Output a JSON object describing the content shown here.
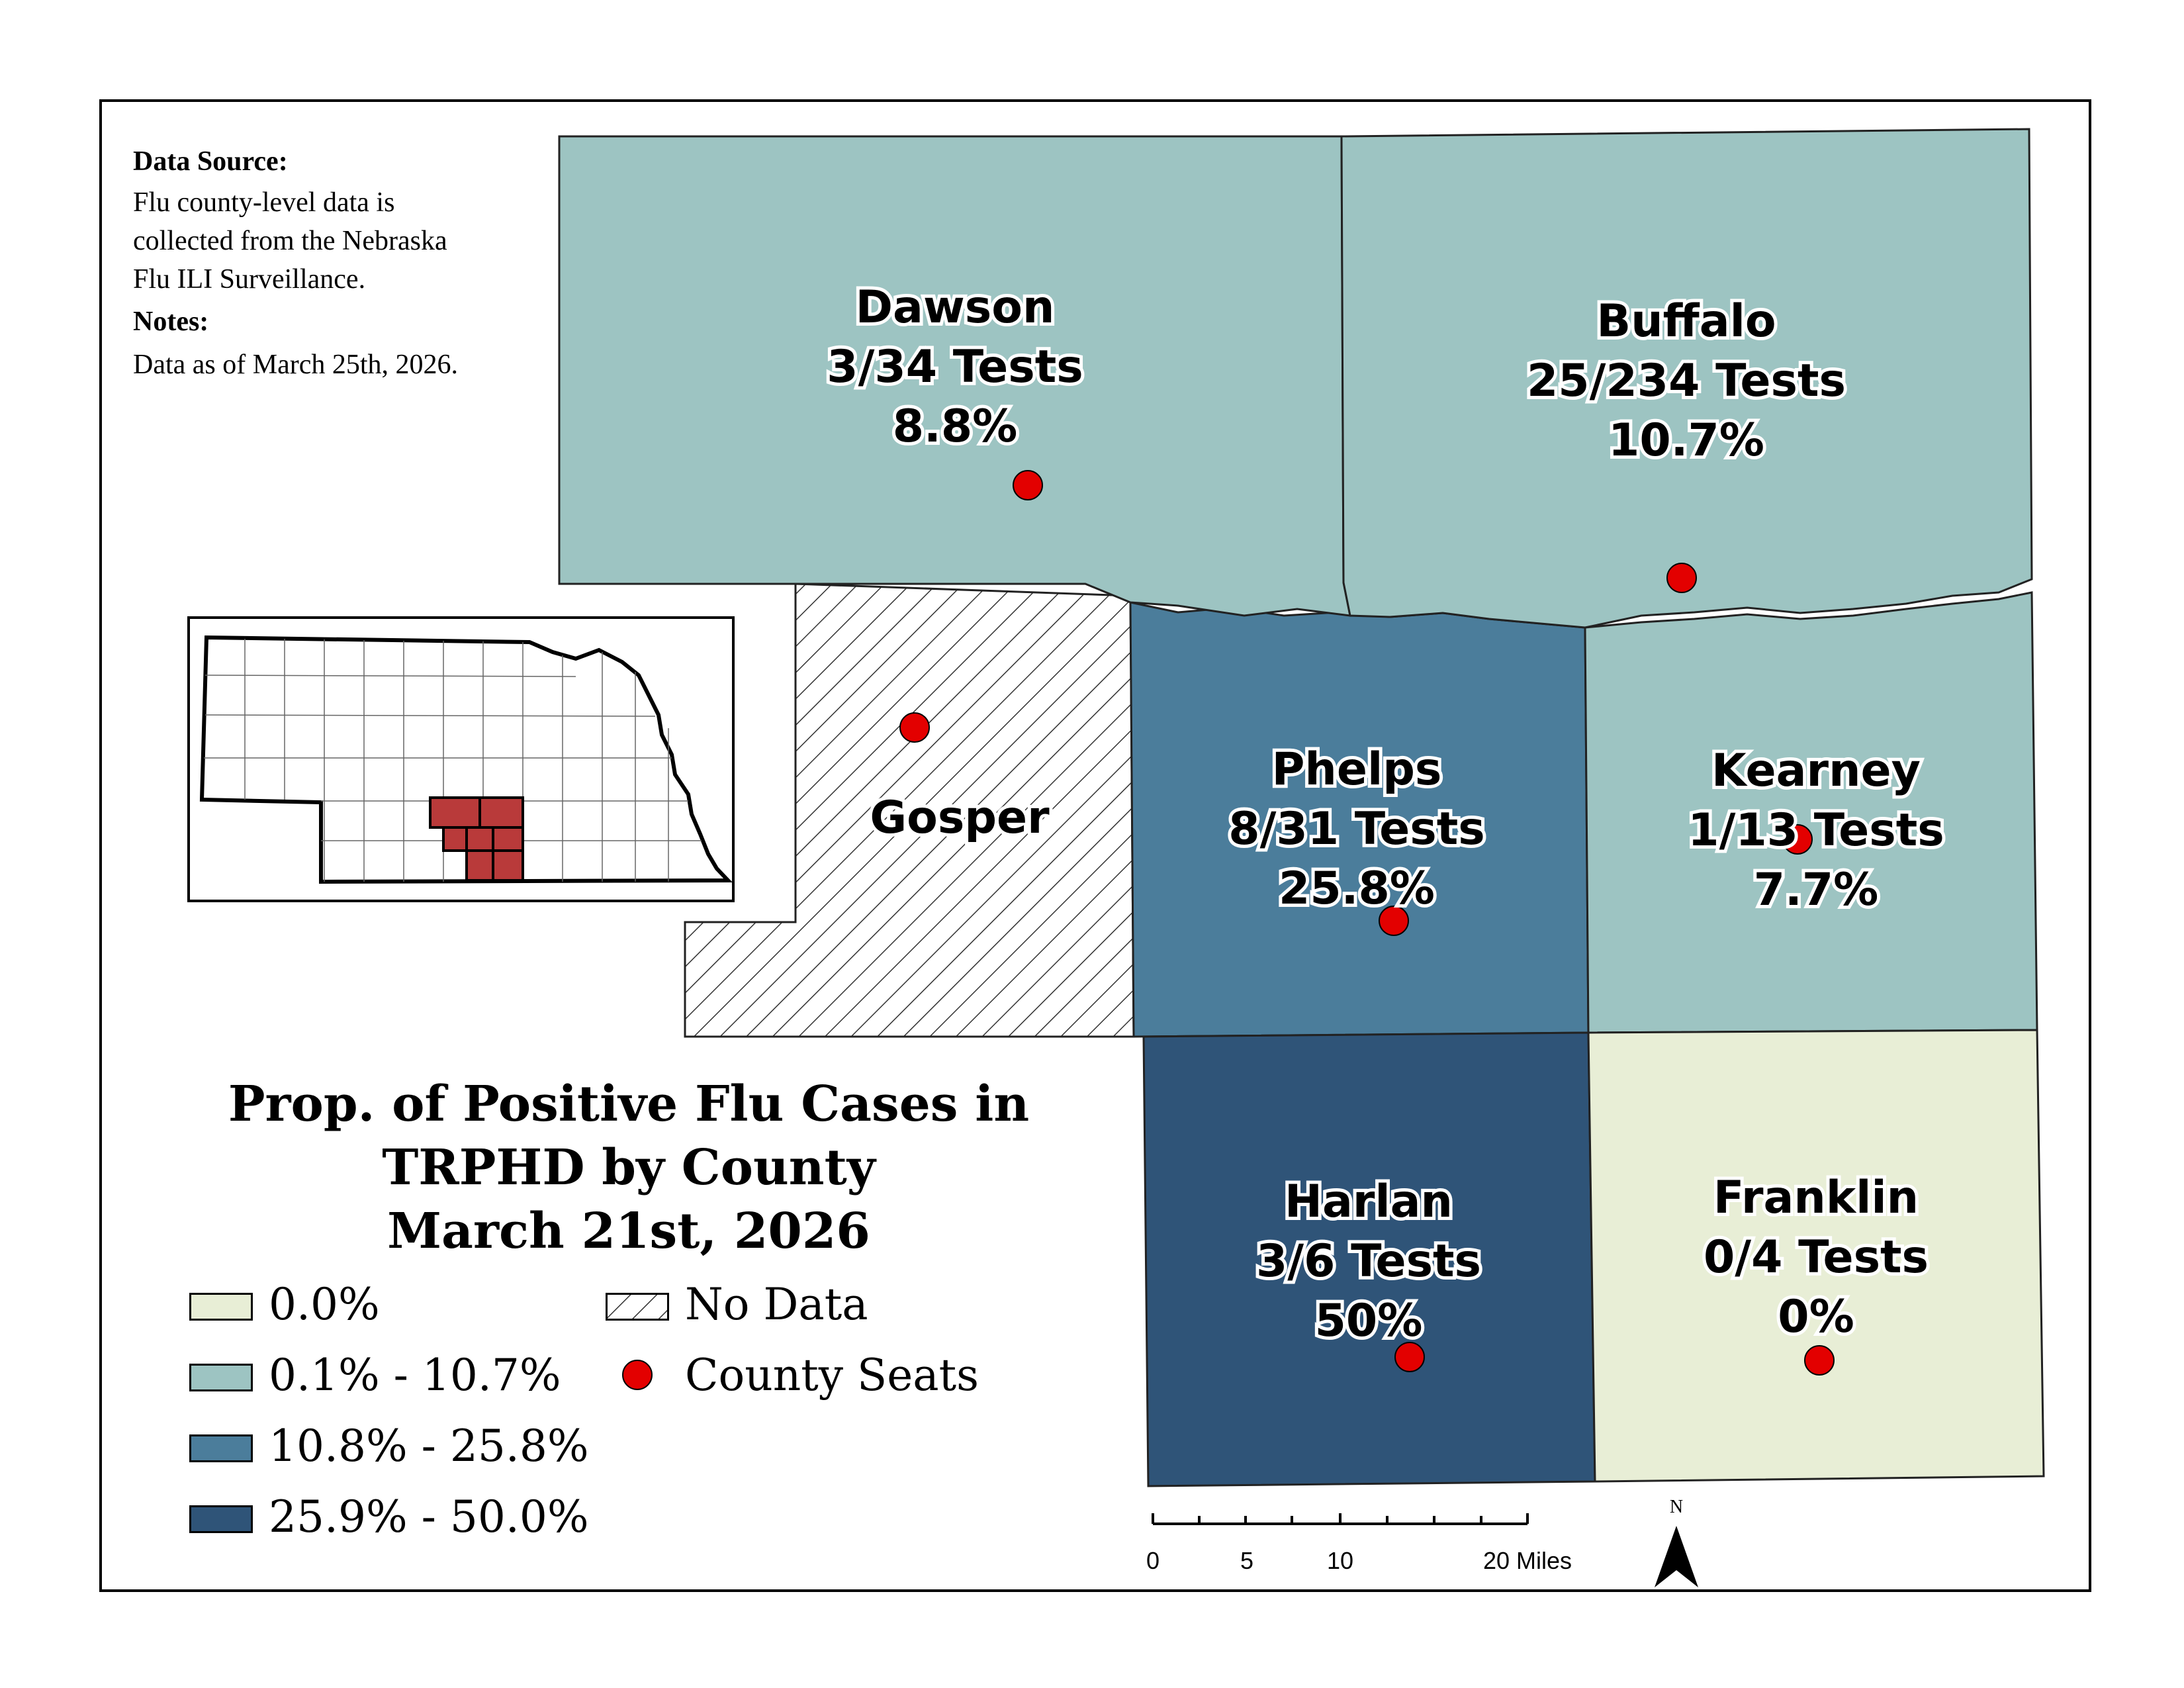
{
  "source": {
    "heading": "Data Source:",
    "lines": [
      "Flu county-level data is",
      "collected from the Nebraska",
      "Flu ILI Surveillance."
    ],
    "notes_heading": "Notes:",
    "notes": "Data as of March 25th, 2026."
  },
  "title": {
    "line1": "Prop. of Positive Flu Cases in",
    "line2": "TRPHD by County",
    "line3": "March 21st, 2026"
  },
  "counties": {
    "dawson": {
      "name": "Dawson",
      "tests": "3/34 Tests",
      "pct": "8.8%",
      "class": "0.1% - 10.7%"
    },
    "buffalo": {
      "name": "Buffalo",
      "tests": "25/234 Tests",
      "pct": "10.7%",
      "class": "0.1% - 10.7%"
    },
    "gosper": {
      "name": "Gosper",
      "class": "No Data"
    },
    "phelps": {
      "name": "Phelps",
      "tests": "8/31 Tests",
      "pct": "25.8%",
      "class": "10.8% - 25.8%"
    },
    "kearney": {
      "name": "Kearney",
      "tests": "1/13 Tests",
      "pct": "7.7%",
      "class": "0.1% - 10.7%"
    },
    "harlan": {
      "name": "Harlan",
      "tests": "3/6 Tests",
      "pct": "50%",
      "class": "25.9% - 50.0%"
    },
    "franklin": {
      "name": "Franklin",
      "tests": "0/4 Tests",
      "pct": "0%",
      "class": "0.0%"
    }
  },
  "legend": {
    "classes": [
      {
        "label": "0.0%",
        "color": "#e8eed6"
      },
      {
        "label": "0.1% - 10.7%",
        "color": "#9dc4c2"
      },
      {
        "label": "10.8% - 25.8%",
        "color": "#4b7d9b"
      },
      {
        "label": "25.9% - 50.0%",
        "color": "#2f5478"
      }
    ],
    "no_data": "No Data",
    "county_seats": "County Seats",
    "seat_color": "#e30000"
  },
  "scale_bar": {
    "labels": [
      "0",
      "5",
      "10",
      "20 Miles"
    ]
  },
  "north_arrow": {
    "label": "N"
  },
  "inset": {
    "state": "Nebraska",
    "highlight_color": "#b93a3a"
  }
}
